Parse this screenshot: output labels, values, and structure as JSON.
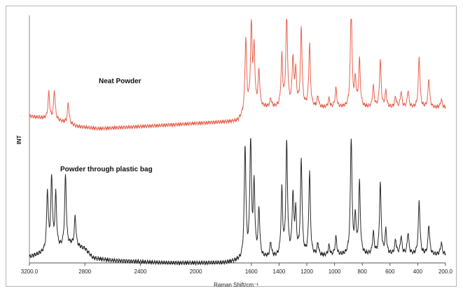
{
  "chart_data": {
    "type": "line",
    "xlabel": "Raman Shift/cm⁻¹",
    "ylabel": "INT",
    "xlim": [
      3200,
      200
    ],
    "x_ticks": [
      "3200.0",
      "2800",
      "2400",
      "2000",
      "1600",
      "1400",
      "1200",
      "1000",
      "800",
      "600",
      "400",
      "200.0"
    ],
    "x_tick_values": [
      3200,
      2800,
      2400,
      2000,
      1600,
      1400,
      1200,
      1000,
      800,
      600,
      400,
      200
    ],
    "grid": false,
    "series": [
      {
        "name": "Neat Powder",
        "color": "#e8634f",
        "baseline": [
          [
            3200,
            0.12
          ],
          [
            3000,
            0.08
          ],
          [
            2850,
            0.02
          ],
          [
            2700,
            0.0
          ],
          [
            2400,
            0.02
          ],
          [
            2000,
            0.05
          ],
          [
            1700,
            0.07
          ],
          [
            1620,
            0.18
          ],
          [
            1500,
            0.2
          ],
          [
            1000,
            0.2
          ],
          [
            600,
            0.2
          ],
          [
            200,
            0.2
          ]
        ],
        "peaks": [
          {
            "x": 3060,
            "h": 0.25
          },
          {
            "x": 3020,
            "h": 0.28
          },
          {
            "x": 2920,
            "h": 0.2
          },
          {
            "x": 1640,
            "h": 0.7
          },
          {
            "x": 1600,
            "h": 0.78
          },
          {
            "x": 1580,
            "h": 0.55
          },
          {
            "x": 1545,
            "h": 0.35
          },
          {
            "x": 1460,
            "h": 0.08
          },
          {
            "x": 1380,
            "h": 0.48
          },
          {
            "x": 1345,
            "h": 0.9
          },
          {
            "x": 1300,
            "h": 0.45
          },
          {
            "x": 1280,
            "h": 0.32
          },
          {
            "x": 1240,
            "h": 0.75
          },
          {
            "x": 1180,
            "h": 0.6
          },
          {
            "x": 1120,
            "h": 0.1
          },
          {
            "x": 1040,
            "h": 0.08
          },
          {
            "x": 990,
            "h": 0.18
          },
          {
            "x": 880,
            "h": 1.0
          },
          {
            "x": 850,
            "h": 0.25
          },
          {
            "x": 820,
            "h": 0.45
          },
          {
            "x": 720,
            "h": 0.2
          },
          {
            "x": 670,
            "h": 0.45
          },
          {
            "x": 630,
            "h": 0.15
          },
          {
            "x": 560,
            "h": 0.1
          },
          {
            "x": 520,
            "h": 0.15
          },
          {
            "x": 470,
            "h": 0.16
          },
          {
            "x": 390,
            "h": 0.48
          },
          {
            "x": 320,
            "h": 0.28
          },
          {
            "x": 230,
            "h": 0.08
          }
        ]
      },
      {
        "name": "Powder through plastic bag",
        "color": "#2a2a2a",
        "baseline": [
          [
            3200,
            0.05
          ],
          [
            2900,
            0.15
          ],
          [
            2800,
            0.12
          ],
          [
            2740,
            0.04
          ],
          [
            2600,
            0.02
          ],
          [
            2200,
            0.0
          ],
          [
            1800,
            0.0
          ],
          [
            1660,
            0.02
          ],
          [
            1500,
            0.04
          ],
          [
            1000,
            0.06
          ],
          [
            600,
            0.07
          ],
          [
            200,
            0.07
          ]
        ],
        "peaks": [
          {
            "x": 3070,
            "h": 0.5
          },
          {
            "x": 3040,
            "h": 0.6
          },
          {
            "x": 3010,
            "h": 0.45
          },
          {
            "x": 2940,
            "h": 0.6
          },
          {
            "x": 2870,
            "h": 0.25
          },
          {
            "x": 1645,
            "h": 0.95
          },
          {
            "x": 1605,
            "h": 1.0
          },
          {
            "x": 1580,
            "h": 0.6
          },
          {
            "x": 1545,
            "h": 0.4
          },
          {
            "x": 1460,
            "h": 0.12
          },
          {
            "x": 1380,
            "h": 0.55
          },
          {
            "x": 1345,
            "h": 0.95
          },
          {
            "x": 1300,
            "h": 0.5
          },
          {
            "x": 1280,
            "h": 0.35
          },
          {
            "x": 1240,
            "h": 0.8
          },
          {
            "x": 1180,
            "h": 0.7
          },
          {
            "x": 1120,
            "h": 0.1
          },
          {
            "x": 1040,
            "h": 0.08
          },
          {
            "x": 990,
            "h": 0.15
          },
          {
            "x": 880,
            "h": 1.0
          },
          {
            "x": 850,
            "h": 0.3
          },
          {
            "x": 820,
            "h": 0.6
          },
          {
            "x": 720,
            "h": 0.18
          },
          {
            "x": 670,
            "h": 0.6
          },
          {
            "x": 630,
            "h": 0.2
          },
          {
            "x": 560,
            "h": 0.12
          },
          {
            "x": 520,
            "h": 0.15
          },
          {
            "x": 470,
            "h": 0.18
          },
          {
            "x": 390,
            "h": 0.45
          },
          {
            "x": 320,
            "h": 0.25
          },
          {
            "x": 230,
            "h": 0.1
          }
        ]
      }
    ]
  }
}
